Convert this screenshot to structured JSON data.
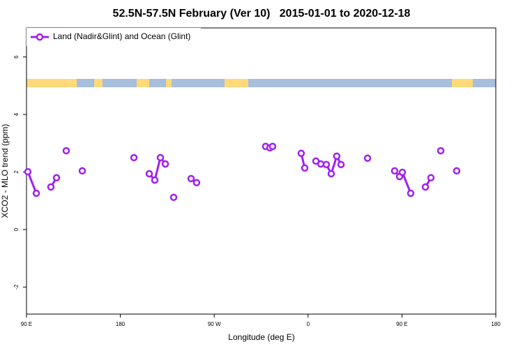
{
  "chart_data": {
    "type": "line",
    "title": "52.5N-57.5N February (Ver 10)   2015-01-01 to 2020-12-18",
    "x_label": "Longitude (deg E)",
    "y_label": "XCO2 - MLO trend (ppm)",
    "xlim": [
      90,
      540
    ],
    "xticks": [
      {
        "value": 90,
        "label": "90 E"
      },
      {
        "value": 180,
        "label": "180"
      },
      {
        "value": 270,
        "label": "90 W"
      },
      {
        "value": 360,
        "label": "0"
      },
      {
        "value": 450,
        "label": "90 E"
      },
      {
        "value": 540,
        "label": "180"
      }
    ],
    "ylim": [
      -2.94,
      7.01
    ],
    "yticks": [
      -2,
      0,
      2,
      4,
      6
    ],
    "legend": "top-left",
    "series": [
      {
        "name": "Land (Nadir&Glint) and Ocean (Glint)",
        "color": "#a020f0",
        "x": [
          91.3,
          99.4,
          null,
          113.4,
          118.8,
          null,
          128.1,
          null,
          143.5,
          null,
          193.0,
          null,
          207.7,
          213.0,
          218.4,
          223.1,
          null,
          231.1,
          null,
          247.8,
          253.1,
          null,
          319.3,
          323.4,
          326.0,
          null,
          353.4,
          356.8,
          null,
          367.5,
          372.2,
          377.5,
          382.2,
          387.5,
          391.6,
          null,
          417.0,
          null,
          443.0,
          447.7,
          450.4,
          458.4,
          null,
          472.5,
          477.8,
          null,
          487.2,
          null,
          502.5
        ],
        "values": [
          2.01,
          1.26,
          null,
          1.48,
          1.8,
          null,
          2.74,
          null,
          2.04,
          null,
          2.5,
          null,
          1.94,
          1.72,
          2.5,
          2.28,
          null,
          1.12,
          null,
          1.77,
          1.63,
          null,
          2.89,
          2.84,
          2.89,
          null,
          2.65,
          2.14,
          null,
          2.38,
          2.28,
          2.26,
          1.94,
          2.55,
          2.26,
          null,
          2.48,
          null,
          2.04,
          1.84,
          1.99,
          1.26,
          null,
          1.48,
          1.8,
          null,
          2.74,
          null,
          2.04
        ]
      }
    ]
  }
}
